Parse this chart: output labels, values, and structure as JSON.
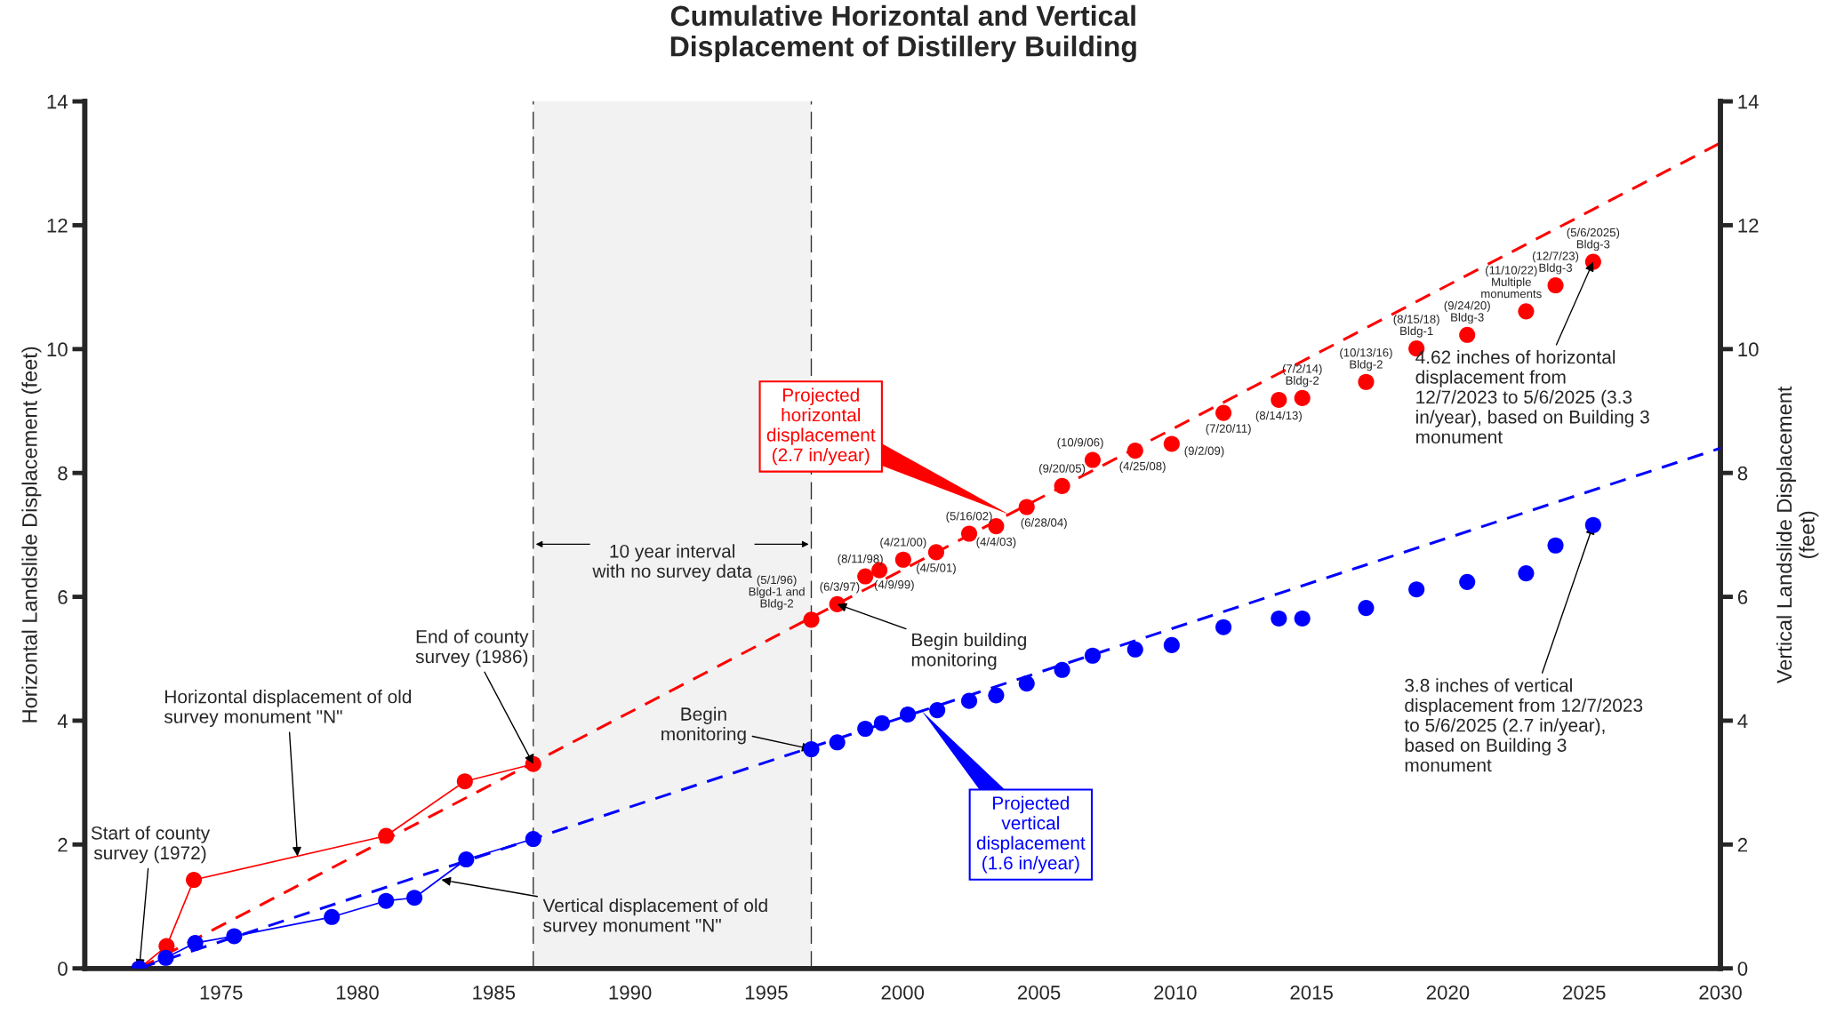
{
  "chart_data": {
    "type": "scatter",
    "title": "Cumulative Horizontal and Vertical\nDisplacement of Distillery Building",
    "ylabel": "Horizontal Landslide Displacement (feet)",
    "y2label": "Vertical Landslide Displacement\n(feet)",
    "xlim": [
      1970,
      2030
    ],
    "xticks": [
      {
        "value": 1970,
        "label": null
      },
      1975,
      1980,
      1985,
      1990,
      1995,
      2000,
      2005,
      2010,
      2015,
      2020,
      2025,
      2030
    ],
    "ylim": [
      0,
      14
    ],
    "yticks": [
      0,
      2,
      4,
      6,
      8,
      10,
      12,
      14
    ],
    "y2lim": [
      0,
      14
    ],
    "y2ticks": [
      0,
      2,
      4,
      6,
      8,
      10,
      12,
      14
    ],
    "grid": false,
    "legend": false,
    "marker": "circle",
    "series": [
      {
        "type": "line",
        "color": "#ff0000",
        "line_style": "solid",
        "x": [
          1972.0,
          1973.0,
          1974.0,
          1981.05,
          1983.94,
          1986.45
        ],
        "values": [
          0,
          0.36,
          1.43,
          2.14,
          3.02,
          3.3
        ]
      },
      {
        "color": "#ff0000",
        "x": [
          1996.65,
          1997.6,
          1998.63,
          1999.15,
          2000.02,
          2001.23,
          2002.44,
          2003.43,
          2004.55,
          2005.85,
          2006.97,
          2008.53,
          2009.87,
          2011.77,
          2013.8,
          2014.66,
          2017.0,
          2018.85,
          2020.71,
          2022.87,
          2023.95,
          2025.33
        ],
        "values": [
          5.63,
          5.88,
          6.33,
          6.43,
          6.6,
          6.72,
          7.02,
          7.14,
          7.45,
          7.79,
          8.21,
          8.36,
          8.47,
          8.97,
          9.18,
          9.21,
          9.47,
          10.01,
          10.23,
          10.61,
          11.03,
          11.41
        ],
        "value_labels": [
          "(5/1/96)\nBlgd-1 and\nBldg-2",
          "(6/3/97)",
          "(8/11/98)",
          "(4/9/99)",
          "(4/21/00)",
          "(4/5/01)",
          "(5/16/02)",
          "(4/4/03)",
          "(6/28/04)",
          "(9/20/05)",
          "(10/9/06)",
          "(4/25/08)",
          "(9/2/09)",
          "(7/20/11)",
          "(8/14/13)",
          "(7/2/14)\nBldg-2",
          "(10/13/16)\nBldg-2",
          "(8/15/18)\nBldg-1",
          "(9/24/20)\nBldg-3",
          "(11/10/22)\nMultiple\nmonuments",
          "(12/7/23)\nBldg-3",
          "(5/6/2025)\nBldg-3"
        ]
      },
      {
        "type": "line",
        "axis": "y2",
        "color": "#0000ff",
        "line_style": "solid",
        "x": [
          1972.0,
          1972.97,
          1974.05,
          1975.48,
          1979.06,
          1981.05,
          1982.09,
          1983.99,
          1986.45
        ],
        "values": [
          0,
          0.17,
          0.41,
          0.52,
          0.83,
          1.09,
          1.14,
          1.76,
          2.09
        ]
      },
      {
        "axis": "y2",
        "color": "#0000ff",
        "x": [
          1996.65,
          1997.6,
          1998.63,
          1999.24,
          2000.19,
          2001.27,
          2002.44,
          2003.43,
          2004.55,
          2005.85,
          2006.97,
          2008.53,
          2009.87,
          2011.77,
          2013.8,
          2014.66,
          2017.0,
          2018.85,
          2020.71,
          2022.87,
          2023.95,
          2025.33
        ],
        "values": [
          3.54,
          3.65,
          3.87,
          3.96,
          4.1,
          4.17,
          4.32,
          4.41,
          4.6,
          4.82,
          5.05,
          5.15,
          5.22,
          5.51,
          5.65,
          5.65,
          5.82,
          6.12,
          6.24,
          6.38,
          6.83,
          7.16
        ]
      },
      {
        "type": "line",
        "name": "Projected\nhorizontal\ndisplacement\n(2.7 in/year)",
        "color": "#ff0000",
        "line_style": "dashed",
        "marker": "none",
        "x": [
          1972,
          2030
        ],
        "values": [
          0,
          13.33
        ]
      },
      {
        "type": "line",
        "axis": "y2",
        "name": "Projected\nvertical\ndisplacement\n(1.6 in/year)",
        "color": "#0000ff",
        "line_style": "dashed",
        "marker": "none",
        "x": [
          1972,
          2030
        ],
        "values": [
          0,
          8.4
        ]
      }
    ],
    "ref_lines": [
      {
        "axis": "x",
        "value": 1986.45,
        "color": "#333333",
        "line_style": "dashed"
      },
      {
        "axis": "x",
        "value": 1996.65,
        "color": "#333333",
        "line_style": "dashed"
      }
    ],
    "bands": [
      {
        "axis": "x",
        "from": 1986.45,
        "to": 1996.65,
        "label": "10 year interval\nwith no survey data",
        "color": "#f2f2f2"
      }
    ],
    "annotations": [
      {
        "text": "Start of county\nsurvey (1972)",
        "x": 1972.0,
        "y": 0
      },
      {
        "text": "Horizontal displacement of old\nsurvey monument \"N\"",
        "x": 1977.8,
        "y": 1.81
      },
      {
        "text": "End of county\nsurvey (1986)",
        "x": 1986.45,
        "y": 3.3
      },
      {
        "text": "Vertical displacement of old\nsurvey monument \"N\"",
        "x": 1983.08,
        "y": 1.43
      },
      {
        "text": "Begin building\nmonitoring",
        "x": 1997.6,
        "y": 5.88
      },
      {
        "text": "Begin\nmonitoring",
        "x": 1996.65,
        "y": 3.54
      },
      {
        "text": "4.62 inches of horizontal\ndisplacement from\n12/7/2023 to 5/6/2025 (3.3\nin/year), based on Building 3\nmonument",
        "x": 2025.33,
        "y": 11.41
      },
      {
        "text": "3.8 inches of vertical\ndisplacement from 12/7/2023\nto 5/6/2025 (2.7 in/year),\nbased on Building 3\nmonument",
        "x": 2025.33,
        "y": 7.16
      }
    ]
  }
}
